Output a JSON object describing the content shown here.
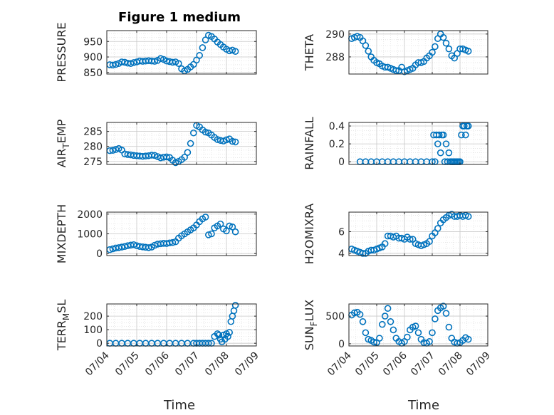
{
  "figure": {
    "title": "Figure 1 medium",
    "xlabel": "Time"
  },
  "chart_data": [
    {
      "type": "scatter",
      "ylabel": "PRESSURE",
      "xlim": [
        0,
        5
      ],
      "ylim": [
        845,
        985
      ],
      "yticks": [
        850,
        900,
        950
      ],
      "x": [
        0.1,
        0.2,
        0.3,
        0.4,
        0.5,
        0.6,
        0.7,
        0.8,
        0.9,
        1.0,
        1.1,
        1.2,
        1.3,
        1.4,
        1.5,
        1.6,
        1.7,
        1.8,
        1.9,
        2.0,
        2.1,
        2.2,
        2.3,
        2.4,
        2.5,
        2.6,
        2.7,
        2.8,
        2.9,
        3.0,
        3.1,
        3.2,
        3.3,
        3.4,
        3.5,
        3.6,
        3.7,
        3.8,
        3.9,
        4.0,
        4.1,
        4.2,
        4.3
      ],
      "y": [
        875,
        874,
        876,
        879,
        884,
        883,
        880,
        879,
        882,
        884,
        887,
        886,
        887,
        888,
        887,
        886,
        889,
        895,
        892,
        887,
        885,
        883,
        884,
        879,
        862,
        855,
        860,
        868,
        876,
        890,
        905,
        930,
        955,
        970,
        966,
        958,
        948,
        940,
        932,
        925,
        920,
        922,
        918
      ]
    },
    {
      "type": "scatter",
      "ylabel": "THETA",
      "xlim": [
        0,
        5
      ],
      "ylim": [
        286.5,
        290.3
      ],
      "yticks": [
        288,
        290
      ],
      "x": [
        0.1,
        0.2,
        0.3,
        0.4,
        0.5,
        0.6,
        0.7,
        0.8,
        0.9,
        1.0,
        1.1,
        1.2,
        1.3,
        1.4,
        1.5,
        1.6,
        1.7,
        1.8,
        1.9,
        2.0,
        2.1,
        2.2,
        2.3,
        2.4,
        2.5,
        2.6,
        2.7,
        2.8,
        2.9,
        3.0,
        3.1,
        3.2,
        3.3,
        3.4,
        3.5,
        3.6,
        3.7,
        3.8,
        3.9,
        4.0,
        4.1,
        4.2,
        4.3
      ],
      "y": [
        289.6,
        289.7,
        289.8,
        289.7,
        289.4,
        289.0,
        288.5,
        288.0,
        287.7,
        287.5,
        287.4,
        287.2,
        287.1,
        287.1,
        287.0,
        286.9,
        286.8,
        286.8,
        287.1,
        286.7,
        286.8,
        286.9,
        287.0,
        287.3,
        287.5,
        287.5,
        287.6,
        287.9,
        288.1,
        288.4,
        288.9,
        289.6,
        290.0,
        289.7,
        289.2,
        288.7,
        288.1,
        287.9,
        288.3,
        288.7,
        288.7,
        288.6,
        288.5
      ]
    },
    {
      "type": "scatter",
      "ylabel": "AIR_TEMP",
      "xlim": [
        0,
        5
      ],
      "ylim": [
        274,
        288
      ],
      "yticks": [
        275,
        280,
        285
      ],
      "x": [
        0.1,
        0.2,
        0.3,
        0.4,
        0.5,
        0.6,
        0.7,
        0.8,
        0.9,
        1.0,
        1.1,
        1.2,
        1.3,
        1.4,
        1.5,
        1.6,
        1.7,
        1.8,
        1.9,
        2.0,
        2.1,
        2.2,
        2.3,
        2.4,
        2.5,
        2.6,
        2.7,
        2.8,
        2.9,
        3.0,
        3.1,
        3.2,
        3.3,
        3.4,
        3.5,
        3.6,
        3.7,
        3.8,
        3.9,
        4.0,
        4.1,
        4.2,
        4.3
      ],
      "y": [
        278.6,
        278.7,
        279.0,
        279.3,
        278.8,
        277.5,
        277.3,
        277.2,
        277.0,
        276.9,
        276.8,
        276.7,
        276.8,
        276.9,
        277.1,
        277.0,
        276.6,
        276.2,
        276.4,
        276.5,
        276.3,
        275.4,
        274.6,
        275.0,
        275.6,
        276.4,
        278.0,
        281.0,
        284.5,
        287.0,
        286.5,
        285.5,
        284.8,
        284.5,
        283.8,
        283.0,
        282.3,
        282.0,
        281.8,
        282.2,
        282.5,
        281.7,
        281.5
      ]
    },
    {
      "type": "scatter",
      "ylabel": "RAINFALL",
      "xlim": [
        0,
        5
      ],
      "ylim": [
        -0.03,
        0.44
      ],
      "yticks": [
        0,
        0.2,
        0.4
      ],
      "x": [
        0.4,
        0.6,
        0.8,
        1.0,
        1.2,
        1.4,
        1.6,
        1.8,
        2.0,
        2.2,
        2.4,
        2.6,
        2.8,
        3.0,
        3.05,
        3.1,
        3.15,
        3.2,
        3.25,
        3.3,
        3.35,
        3.4,
        3.45,
        3.5,
        3.55,
        3.6,
        3.65,
        3.7,
        3.75,
        3.8,
        3.85,
        3.9,
        3.95,
        4.0,
        4.05,
        4.1,
        4.15,
        4.2,
        4.25,
        4.3
      ],
      "y": [
        0,
        0,
        0,
        0,
        0,
        0,
        0,
        0,
        0,
        0,
        0,
        0,
        0,
        0,
        0.3,
        0,
        0.3,
        0.2,
        0.3,
        0.1,
        0.3,
        0.3,
        0,
        0.2,
        0,
        0.1,
        0,
        0,
        0,
        0,
        0,
        0,
        0,
        0,
        0.3,
        0.4,
        0.4,
        0.3,
        0.4,
        0.4
      ]
    },
    {
      "type": "scatter",
      "ylabel": "MIXDEPTH",
      "xlim": [
        0,
        5
      ],
      "ylim": [
        -100,
        2100
      ],
      "yticks": [
        0,
        1000,
        2000
      ],
      "x": [
        0.1,
        0.2,
        0.3,
        0.4,
        0.5,
        0.6,
        0.7,
        0.8,
        0.9,
        1.0,
        1.1,
        1.2,
        1.3,
        1.4,
        1.5,
        1.6,
        1.7,
        1.8,
        1.9,
        2.0,
        2.1,
        2.2,
        2.3,
        2.4,
        2.5,
        2.6,
        2.7,
        2.8,
        2.9,
        3.0,
        3.1,
        3.2,
        3.3,
        3.4,
        3.5,
        3.6,
        3.7,
        3.8,
        3.9,
        4.0,
        4.1,
        4.2,
        4.3
      ],
      "y": [
        200,
        240,
        280,
        300,
        330,
        360,
        400,
        430,
        450,
        400,
        360,
        340,
        320,
        300,
        330,
        420,
        480,
        500,
        520,
        510,
        540,
        560,
        600,
        780,
        900,
        1000,
        1100,
        1200,
        1300,
        1450,
        1620,
        1760,
        1850,
        950,
        1000,
        1300,
        1400,
        1500,
        1250,
        1150,
        1400,
        1350,
        1100
      ]
    },
    {
      "type": "scatter",
      "ylabel": "H2OMIXRA",
      "xlim": [
        0,
        5
      ],
      "ylim": [
        3.8,
        7.8
      ],
      "yticks": [
        4,
        6
      ],
      "x": [
        0.1,
        0.2,
        0.3,
        0.4,
        0.5,
        0.6,
        0.7,
        0.8,
        0.9,
        1.0,
        1.1,
        1.2,
        1.3,
        1.4,
        1.5,
        1.6,
        1.7,
        1.8,
        1.9,
        2.0,
        2.1,
        2.2,
        2.3,
        2.4,
        2.5,
        2.6,
        2.7,
        2.8,
        2.9,
        3.0,
        3.1,
        3.2,
        3.3,
        3.4,
        3.5,
        3.6,
        3.7,
        3.8,
        3.9,
        4.0,
        4.1,
        4.2,
        4.3
      ],
      "y": [
        4.4,
        4.3,
        4.2,
        4.1,
        4.0,
        4.0,
        4.2,
        4.3,
        4.3,
        4.4,
        4.5,
        4.6,
        4.9,
        5.6,
        5.6,
        5.5,
        5.6,
        5.4,
        5.4,
        5.3,
        5.5,
        5.3,
        5.3,
        4.9,
        4.8,
        4.7,
        4.8,
        4.9,
        5.1,
        5.6,
        5.9,
        6.3,
        6.8,
        7.1,
        7.3,
        7.5,
        7.6,
        7.4,
        7.4,
        7.5,
        7.4,
        7.5,
        7.4
      ]
    },
    {
      "type": "scatter",
      "ylabel": "TERR_MSL",
      "xlim": [
        0,
        5
      ],
      "ylim": [
        -20,
        290
      ],
      "yticks": [
        0,
        100,
        200
      ],
      "x": [
        0.1,
        0.3,
        0.5,
        0.7,
        0.9,
        1.1,
        1.3,
        1.5,
        1.7,
        1.9,
        2.1,
        2.3,
        2.5,
        2.7,
        2.9,
        3.0,
        3.1,
        3.2,
        3.3,
        3.4,
        3.5,
        3.6,
        3.7,
        3.75,
        3.8,
        3.85,
        3.9,
        3.95,
        4.0,
        4.05,
        4.1,
        4.15,
        4.2,
        4.25,
        4.3
      ],
      "y": [
        0,
        0,
        0,
        0,
        0,
        0,
        0,
        0,
        0,
        0,
        0,
        0,
        0,
        0,
        0,
        0,
        0,
        0,
        0,
        0,
        0,
        50,
        70,
        60,
        30,
        10,
        60,
        30,
        70,
        50,
        80,
        160,
        200,
        240,
        280
      ]
    },
    {
      "type": "scatter",
      "ylabel": "SUN_FLUX",
      "xlim": [
        0,
        5
      ],
      "ylim": [
        -40,
        720
      ],
      "yticks": [
        0,
        500
      ],
      "x": [
        0.1,
        0.2,
        0.3,
        0.4,
        0.5,
        0.6,
        0.7,
        0.8,
        0.9,
        1.0,
        1.1,
        1.2,
        1.3,
        1.4,
        1.5,
        1.6,
        1.7,
        1.8,
        1.9,
        2.0,
        2.1,
        2.2,
        2.3,
        2.4,
        2.5,
        2.6,
        2.7,
        2.8,
        2.9,
        3.0,
        3.1,
        3.2,
        3.3,
        3.4,
        3.5,
        3.6,
        3.7,
        3.8,
        3.9,
        4.0,
        4.1,
        4.2,
        4.3
      ],
      "y": [
        520,
        560,
        570,
        530,
        400,
        200,
        80,
        60,
        30,
        20,
        100,
        350,
        500,
        640,
        400,
        250,
        100,
        40,
        10,
        40,
        120,
        250,
        300,
        320,
        200,
        80,
        20,
        10,
        40,
        200,
        450,
        600,
        650,
        680,
        550,
        300,
        100,
        30,
        10,
        20,
        60,
        110,
        80
      ]
    }
  ],
  "xticks": [
    "07/04",
    "07/05",
    "07/06",
    "07/07",
    "07/08",
    "07/09"
  ]
}
